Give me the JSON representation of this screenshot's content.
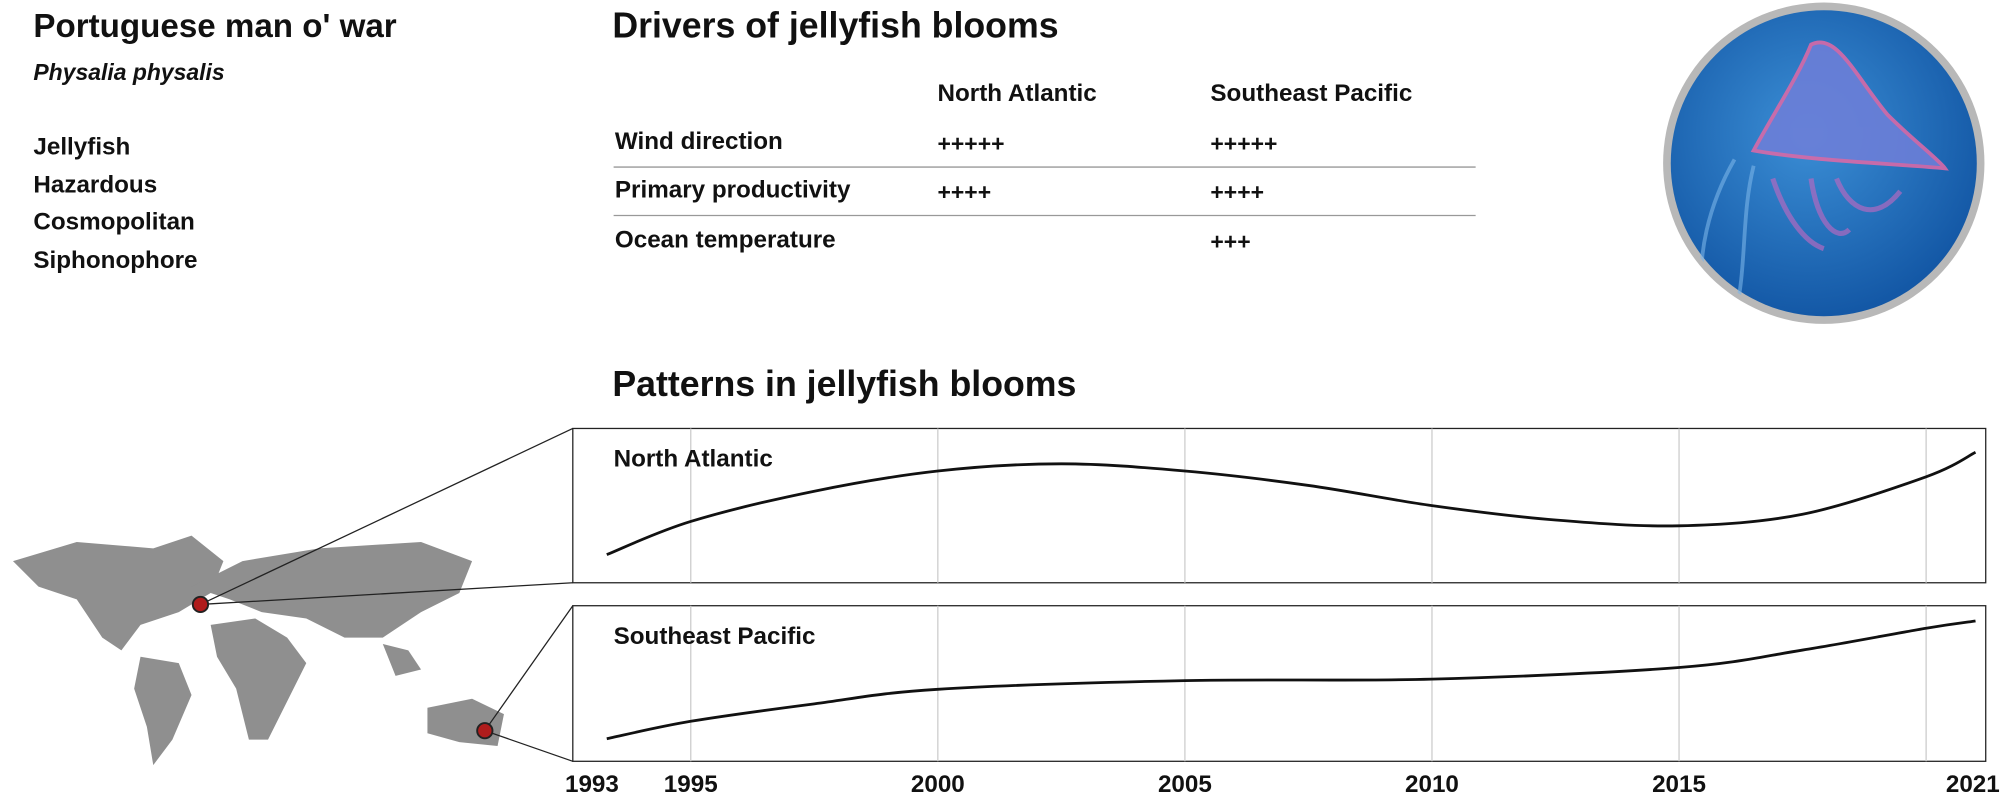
{
  "header": {
    "title": "Portuguese man o' war",
    "subtitle": "Physalia physalis",
    "tags": [
      "Jellyfish",
      "Hazardous",
      "Cosmopolitan",
      "Siphonophore"
    ]
  },
  "table": {
    "title": "Drivers of jellyfish blooms",
    "columns": [
      "North Atlantic",
      "Southeast Pacific"
    ],
    "rows": [
      {
        "label": "Wind direction",
        "cells": [
          "+++++",
          "+++++"
        ]
      },
      {
        "label": "Primary productivity",
        "cells": [
          "++++",
          "++++"
        ]
      },
      {
        "label": "Ocean temperature",
        "cells": [
          null,
          "+++"
        ]
      }
    ]
  },
  "patterns_title": "Patterns in jellyfish blooms",
  "chart_data": [
    {
      "type": "line",
      "title": "North Atlantic",
      "color": "#111111",
      "x": [
        1993.3,
        1995,
        1997.5,
        2000,
        2002.5,
        2005,
        2007.5,
        2010,
        2012.5,
        2015,
        2017.5,
        2020,
        2021
      ],
      "values": [
        0.16,
        0.39,
        0.6,
        0.74,
        0.79,
        0.74,
        0.64,
        0.5,
        0.4,
        0.36,
        0.44,
        0.7,
        0.87
      ],
      "xlim": [
        1993,
        2021
      ],
      "ylim": [
        0,
        1
      ],
      "grid_x": [
        1995,
        2000,
        2005,
        2010,
        2015,
        2020
      ]
    },
    {
      "type": "line",
      "title": "Southeast Pacific",
      "color": "#111111",
      "x": [
        1993.3,
        1995,
        1997.5,
        2000,
        2005,
        2010,
        2015,
        2017.5,
        2020,
        2021
      ],
      "values": [
        0.12,
        0.24,
        0.36,
        0.46,
        0.52,
        0.53,
        0.61,
        0.73,
        0.88,
        0.93
      ],
      "xlim": [
        1993,
        2021
      ],
      "ylim": [
        0,
        1
      ],
      "grid_x": [
        1995,
        2000,
        2005,
        2010,
        2015,
        2020
      ],
      "xticks": [
        1993,
        1995,
        2000,
        2005,
        2010,
        2015,
        2021
      ]
    }
  ]
}
